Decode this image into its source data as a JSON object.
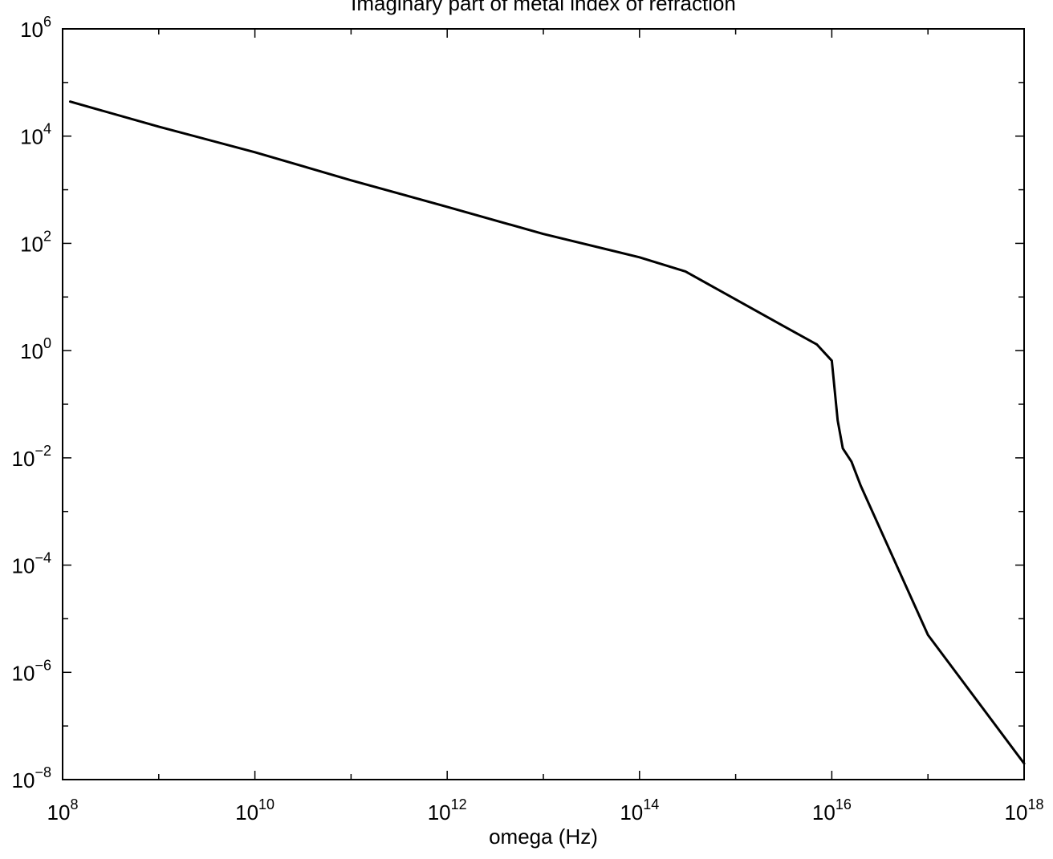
{
  "chart_data": {
    "type": "line",
    "title": "Imaginary part of metal index of refraction",
    "xlabel": "omega (Hz)",
    "ylabel": "",
    "x_scale": "log",
    "y_scale": "log",
    "xlim": [
      100000000.0,
      1e+18
    ],
    "ylim": [
      1e-08,
      1000000.0
    ],
    "grid": false,
    "x_ticks": [
      {
        "base": "10",
        "exp": "8"
      },
      {
        "base": "10",
        "exp": "10"
      },
      {
        "base": "10",
        "exp": "12"
      },
      {
        "base": "10",
        "exp": "14"
      },
      {
        "base": "10",
        "exp": "16"
      },
      {
        "base": "10",
        "exp": "18"
      }
    ],
    "y_ticks": [
      {
        "base": "10",
        "exp": "−8"
      },
      {
        "base": "10",
        "exp": "−6"
      },
      {
        "base": "10",
        "exp": "−4"
      },
      {
        "base": "10",
        "exp": "−2"
      },
      {
        "base": "10",
        "exp": "0"
      },
      {
        "base": "10",
        "exp": "2"
      },
      {
        "base": "10",
        "exp": "4"
      },
      {
        "base": "10",
        "exp": "6"
      }
    ],
    "series": [
      {
        "color": "#000000",
        "x": [
          120000000.0,
          1000000000.0,
          10000000000.0,
          100000000000.0,
          1000000000000.0,
          10000000000000.0,
          100000000000000.0,
          300000000000000.0,
          1000000000000000.0,
          3000000000000000.0,
          7000000000000000.0,
          1e+16,
          1.15e+16,
          1.3e+16,
          1.6e+16,
          2e+16,
          1e+17,
          1e+18
        ],
        "y": [
          44000,
          15000,
          5000,
          1500,
          480,
          150,
          55,
          30,
          9,
          3,
          1.3,
          0.65,
          0.05,
          0.015,
          0.0085,
          0.003,
          5e-06,
          2e-08
        ]
      }
    ]
  }
}
